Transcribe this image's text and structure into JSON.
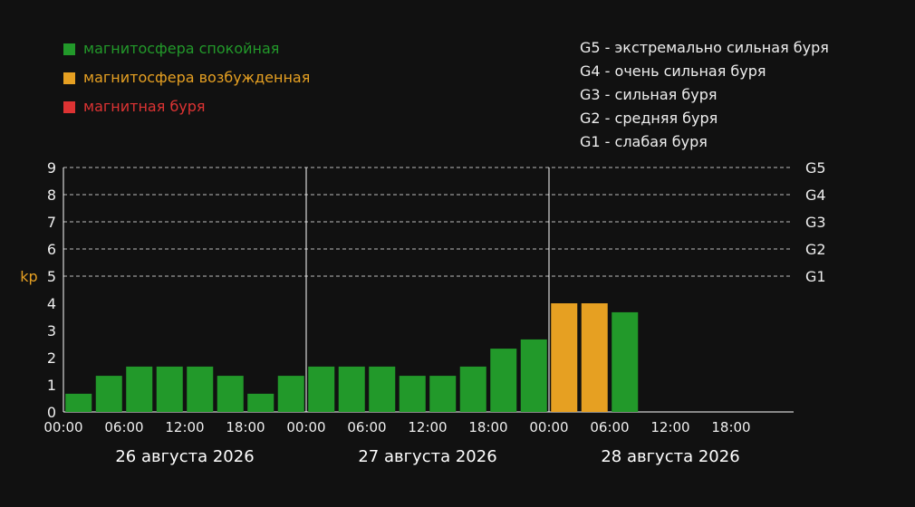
{
  "colors": {
    "background": "#111111",
    "quiet": "#22992a",
    "excited": "#e6a022",
    "storm": "#dd3333",
    "text": "#eeeeee",
    "ylabel": "#e6a022",
    "grid": "#bbbbbb"
  },
  "legend": [
    {
      "label": "магнитосфера спокойная",
      "color": "#22992a"
    },
    {
      "label": "магнитосфера возбужденная",
      "color": "#e6a022"
    },
    {
      "label": "магнитная буря",
      "color": "#dd3333"
    }
  ],
  "storm_scale": [
    {
      "code": "G5",
      "desc": "экстремально сильная буря"
    },
    {
      "code": "G4",
      "desc": "очень сильная буря"
    },
    {
      "code": "G3",
      "desc": "сильная буря"
    },
    {
      "code": "G2",
      "desc": "средняя буря"
    },
    {
      "code": "G1",
      "desc": "слабая буря"
    }
  ],
  "chart_data": {
    "type": "bar",
    "ylabel": "kp",
    "ylim": [
      0,
      9
    ],
    "yticks": [
      "0",
      "1",
      "2",
      "3",
      "4",
      "5",
      "6",
      "7",
      "8",
      "9"
    ],
    "right_axis": [
      {
        "value": 5,
        "label": "G1"
      },
      {
        "value": 6,
        "label": "G2"
      },
      {
        "value": 7,
        "label": "G3"
      },
      {
        "value": 8,
        "label": "G4"
      },
      {
        "value": 9,
        "label": "G5"
      }
    ],
    "grid": "dashed at 5-9",
    "slot_hours": 3,
    "slots_total": 24,
    "days": [
      "26 августа 2026",
      "27 августа 2026",
      "28 августа 2026"
    ],
    "time_ticks": [
      "00:00",
      "06:00",
      "12:00",
      "18:00"
    ],
    "values": [
      0.67,
      1.33,
      1.67,
      1.67,
      1.67,
      1.33,
      0.67,
      1.33,
      1.67,
      1.67,
      1.67,
      1.33,
      1.33,
      1.67,
      2.33,
      2.67,
      4,
      4,
      3.67
    ],
    "levels": [
      "quiet",
      "quiet",
      "quiet",
      "quiet",
      "quiet",
      "quiet",
      "quiet",
      "quiet",
      "quiet",
      "quiet",
      "quiet",
      "quiet",
      "quiet",
      "quiet",
      "quiet",
      "quiet",
      "excited",
      "excited",
      "quiet"
    ]
  }
}
